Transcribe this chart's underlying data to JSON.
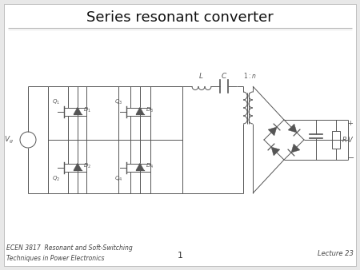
{
  "title": "Series resonant converter",
  "bg_color": "#e8e8e8",
  "slide_bg": "#f5f5f5",
  "content_bg": "#ffffff",
  "footer_left": "ECEN 3817  Resonant and Soft-Switching\nTechniques in Power Electronics",
  "footer_center": "1",
  "footer_right": "Lecture 23",
  "line_color": "#555555",
  "title_fontsize": 13,
  "footer_fontsize": 5.5
}
